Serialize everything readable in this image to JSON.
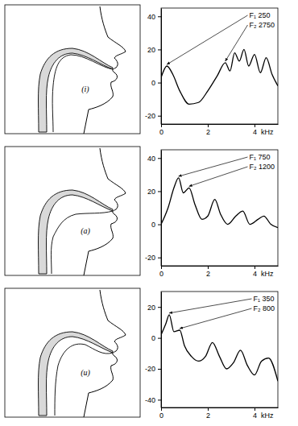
{
  "chart_data": [
    {
      "type": "line",
      "title": "(i)",
      "x": [
        0,
        0.25,
        0.5,
        0.8,
        1.2,
        1.6,
        2.0,
        2.4,
        2.75,
        2.95,
        3.15,
        3.35,
        3.55,
        3.75,
        4.0,
        4.25,
        4.5,
        4.75,
        5
      ],
      "values": [
        3,
        10,
        5,
        -5,
        -13,
        -12,
        -5,
        4,
        12,
        7,
        18,
        13,
        20,
        10,
        17,
        6,
        15,
        5,
        -2
      ],
      "color": "#000000",
      "xlim": [
        0,
        5
      ],
      "ylim": [
        -25,
        45
      ],
      "xticks": [
        0,
        2,
        4
      ],
      "yticks": [
        -20,
        0,
        20,
        40
      ],
      "x_label": "kHz",
      "annotations": [
        {
          "text": "F₁ 250",
          "x": 0.25,
          "y": 10
        },
        {
          "text": "F₂ 2750",
          "x": 2.75,
          "y": 12
        }
      ]
    },
    {
      "type": "line",
      "title": "(a)",
      "x": [
        0,
        0.3,
        0.55,
        0.75,
        0.95,
        1.2,
        1.45,
        1.75,
        2.0,
        2.3,
        2.55,
        2.85,
        3.2,
        3.5,
        3.8,
        4.15,
        4.4,
        4.7,
        5
      ],
      "values": [
        0,
        10,
        22,
        28,
        19,
        22,
        12,
        3,
        5,
        15,
        6,
        0,
        5,
        8,
        0,
        3,
        5,
        0,
        -2
      ],
      "color": "#000000",
      "xlim": [
        0,
        5
      ],
      "ylim": [
        -25,
        45
      ],
      "xticks": [
        0,
        2,
        4
      ],
      "yticks": [
        -20,
        0,
        20,
        40
      ],
      "x_label": "kHz",
      "annotations": [
        {
          "text": "F₁ 750",
          "x": 0.75,
          "y": 28
        },
        {
          "text": "F₂ 1200",
          "x": 1.2,
          "y": 22
        }
      ]
    },
    {
      "type": "line",
      "title": "(u)",
      "x": [
        0,
        0.2,
        0.35,
        0.55,
        0.8,
        1.0,
        1.3,
        1.6,
        1.9,
        2.2,
        2.5,
        2.8,
        3.1,
        3.4,
        3.7,
        4.0,
        4.3,
        4.6,
        5
      ],
      "values": [
        2,
        9,
        15,
        4,
        5,
        -5,
        -12,
        -15,
        -12,
        -3,
        -12,
        -20,
        -16,
        -8,
        -18,
        -24,
        -15,
        -13,
        -28
      ],
      "color": "#000000",
      "xlim": [
        0,
        5
      ],
      "ylim": [
        -45,
        30
      ],
      "xticks": [
        0,
        2,
        4
      ],
      "yticks": [
        -40,
        -20,
        0,
        20
      ],
      "x_label": "kHz",
      "annotations": [
        {
          "text": "F₁ 350",
          "x": 0.35,
          "y": 15
        },
        {
          "text": "F₂ 800",
          "x": 0.8,
          "y": 5
        }
      ]
    }
  ]
}
